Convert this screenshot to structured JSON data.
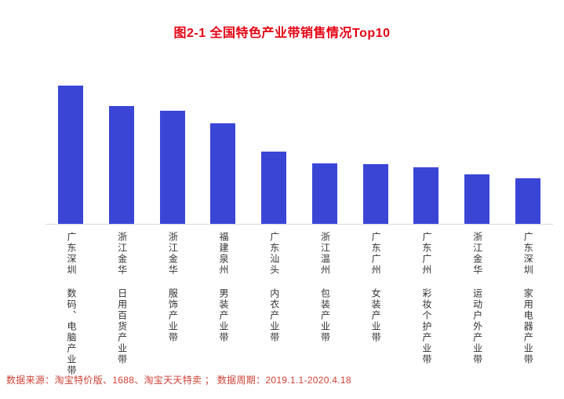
{
  "title": {
    "text": "图2-1 全国特色产业带销售情况Top10",
    "color": "#e60012"
  },
  "footer": {
    "text": "数据来源：淘宝特价版、1688、淘宝天天特卖 ；  数据周期：2019.1.1-2020.4.18",
    "color": "#cf4236"
  },
  "chart_data": {
    "type": "bar",
    "title": "图2-1 全国特色产业带销售情况Top10",
    "categories": [
      "广东深圳 数码、电脑产业带",
      "浙江金华 日用百货产业带",
      "浙江金华 服饰产业带",
      "福建泉州 男装产业带",
      "广东汕头 内衣产业带",
      "浙江温州 包装产业带",
      "广东广州 女装产业带",
      "广东广州 彩妆个护产业带",
      "浙江金华 运动户外产业带",
      "广东深圳 家用电器产业带"
    ],
    "values": [
      100,
      85,
      82,
      73,
      52,
      44,
      43,
      41,
      36,
      33
    ],
    "xlabel": "",
    "ylabel": "",
    "ylim": [
      0,
      100
    ],
    "y_axis_visible": false,
    "grid": false,
    "legend": false,
    "bar_color": "#3a45d6",
    "axis_color": "#d9d9d9",
    "label_color": "#333333",
    "title_color": "#e60012",
    "footer_color": "#cf4236"
  }
}
